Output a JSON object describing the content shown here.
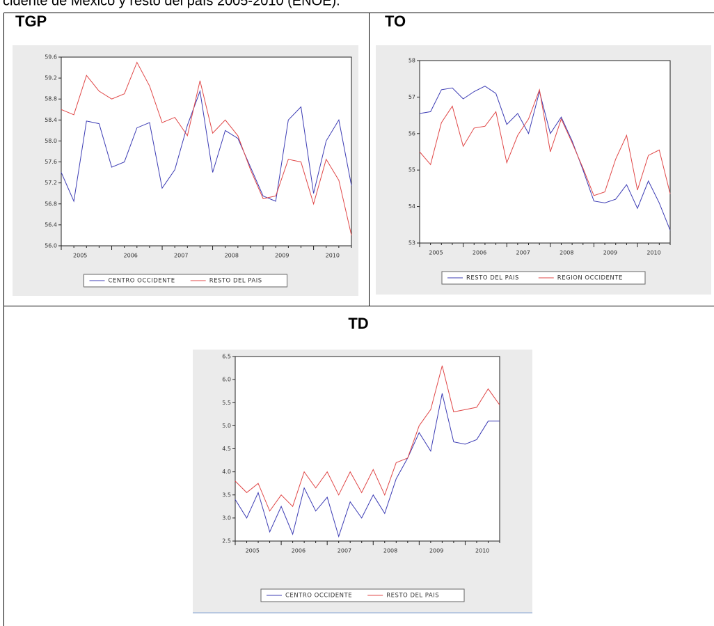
{
  "header": {
    "text": "cidente de México y resto del país 2005-2010 (ENOE)."
  },
  "chart_data": [
    {
      "type": "line",
      "title": "TGP",
      "categories": [
        null,
        "2005",
        null,
        null,
        null,
        "2006",
        null,
        null,
        null,
        "2007",
        null,
        null,
        null,
        "2008",
        null,
        null,
        null,
        "2009",
        null,
        null,
        null,
        "2010",
        null,
        null
      ],
      "series": [
        {
          "name": "CENTRO OCCIDENTE",
          "color": "#3c3cb4",
          "values": [
            57.4,
            56.85,
            58.38,
            58.33,
            57.5,
            57.6,
            58.25,
            58.35,
            57.1,
            57.45,
            58.3,
            58.95,
            57.4,
            58.2,
            58.05,
            57.5,
            56.95,
            56.85,
            58.4,
            58.65,
            57.0,
            58.0,
            58.4,
            57.15
          ]
        },
        {
          "name": "RESTO DEL PAIS",
          "color": "#e04848",
          "values": [
            58.6,
            58.5,
            59.25,
            58.95,
            58.8,
            58.9,
            59.5,
            59.05,
            58.35,
            58.45,
            58.1,
            59.15,
            58.15,
            58.4,
            58.1,
            57.45,
            56.9,
            56.95,
            57.65,
            57.6,
            56.8,
            57.65,
            57.25,
            56.2
          ]
        }
      ],
      "ylim": [
        56.0,
        59.6
      ],
      "yticks": [
        {
          "value": 56.0,
          "label": "56.0"
        },
        56.4,
        56.8,
        57.2,
        57.6,
        {
          "value": 58.0,
          "label": "58.0"
        },
        58.4,
        58.8,
        59.2,
        59.6
      ]
    },
    {
      "type": "line",
      "title": "TO",
      "categories": [
        null,
        "2005",
        null,
        null,
        null,
        "2006",
        null,
        null,
        null,
        "2007",
        null,
        null,
        null,
        "2008",
        null,
        null,
        null,
        "2009",
        null,
        null,
        null,
        "2010",
        null,
        null
      ],
      "series": [
        {
          "name": "RESTO DEL PAIS",
          "color": "#3c3cb4",
          "values": [
            56.55,
            56.6,
            57.2,
            57.25,
            56.95,
            57.15,
            57.3,
            57.1,
            56.25,
            56.55,
            56.0,
            57.15,
            56.0,
            56.45,
            55.8,
            55.0,
            54.15,
            54.1,
            54.2,
            54.6,
            53.95,
            54.7,
            54.1,
            53.35
          ]
        },
        {
          "name": "REGION OCCIDENTE",
          "color": "#e04848",
          "values": [
            55.5,
            55.15,
            56.3,
            56.75,
            55.65,
            56.15,
            56.2,
            56.6,
            55.2,
            55.95,
            56.4,
            57.2,
            55.5,
            56.4,
            55.75,
            55.05,
            54.3,
            54.4,
            55.3,
            55.95,
            54.45,
            55.4,
            55.55,
            54.35
          ]
        }
      ],
      "ylim": [
        53,
        58
      ],
      "yticks": [
        53,
        54,
        55,
        56,
        57,
        58
      ]
    },
    {
      "type": "line",
      "title": "TD",
      "categories": [
        null,
        "2005",
        null,
        null,
        null,
        "2006",
        null,
        null,
        null,
        "2007",
        null,
        null,
        null,
        "2008",
        null,
        null,
        null,
        "2009",
        null,
        null,
        null,
        "2010",
        null,
        null
      ],
      "series": [
        {
          "name": "CENTRO OCCIDENTE",
          "color": "#3c3cb4",
          "values": [
            3.4,
            3.0,
            3.55,
            2.7,
            3.25,
            2.65,
            3.65,
            3.15,
            3.45,
            2.6,
            3.35,
            3.0,
            3.5,
            3.1,
            3.85,
            4.3,
            4.85,
            4.45,
            5.7,
            4.65,
            4.6,
            4.7,
            5.1,
            5.1
          ]
        },
        {
          "name": "RESTO DEL PAIS",
          "color": "#e04848",
          "values": [
            3.8,
            3.55,
            3.75,
            3.15,
            3.5,
            3.25,
            4.0,
            3.65,
            4.0,
            3.5,
            4.0,
            3.55,
            4.05,
            3.5,
            4.2,
            4.3,
            5.0,
            5.35,
            6.3,
            5.3,
            5.35,
            5.4,
            5.8,
            5.45
          ]
        }
      ],
      "ylim": [
        2.5,
        6.5
      ],
      "yticks": [
        2.5,
        {
          "value": 3.0,
          "label": "3.0"
        },
        3.5,
        {
          "value": 4.0,
          "label": "4.0"
        },
        4.5,
        {
          "value": 5.0,
          "label": "5.0"
        },
        5.5,
        {
          "value": 6.0,
          "label": "6.0"
        },
        6.5
      ]
    }
  ]
}
